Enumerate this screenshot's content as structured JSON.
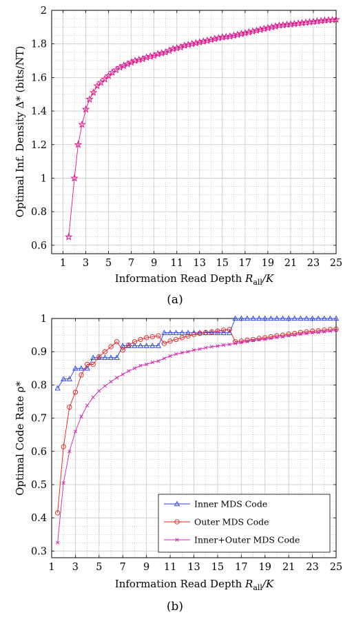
{
  "colors": {
    "density": "#e0118a",
    "inner": "#1f3ee6",
    "outer": "#e01b1b",
    "innerouter": "#d41cb0"
  },
  "chart_data": [
    {
      "type": "line",
      "caption": "(a)",
      "title": "",
      "xlabel_main": "Information Read Depth ",
      "xlabel_var": "R",
      "xlabel_sub": "all",
      "xlabel_tail": "/K",
      "ylabel": "Optimal Inf. Density Δ* (bits/NT)",
      "xlim": [
        0,
        25
      ],
      "ylim": [
        0.55,
        2
      ],
      "xticks": [
        1,
        3,
        5,
        7,
        9,
        11,
        13,
        15,
        17,
        19,
        21,
        23,
        25
      ],
      "xtick_labels": [
        "1",
        "3",
        "5",
        "7",
        "9",
        "11",
        "13",
        "15",
        "17",
        "19",
        "21",
        "23",
        "25"
      ],
      "yticks": [
        0.6,
        0.8,
        1,
        1.2,
        1.4,
        1.6,
        1.8,
        2
      ],
      "ytick_labels": [
        "0.6",
        "0.8",
        "1",
        "1.2",
        "1.4",
        "1.6",
        "1.8",
        "2"
      ],
      "grid": true,
      "series": [
        {
          "marker": "star",
          "color": "#e0118a",
          "x": [
            1.5,
            2,
            2.33,
            2.67,
            3,
            3.33,
            3.67,
            4,
            4.33,
            4.67,
            5,
            5.33,
            5.67,
            6,
            6.33,
            6.67,
            7,
            7.33,
            7.67,
            8,
            8.33,
            8.67,
            9,
            9.33,
            9.67,
            10,
            10.33,
            10.67,
            11,
            11.33,
            11.67,
            12,
            12.33,
            12.67,
            13,
            13.33,
            13.67,
            14,
            14.33,
            14.67,
            15,
            15.33,
            15.67,
            16,
            16.33,
            16.67,
            17,
            17.33,
            17.67,
            18,
            18.33,
            18.67,
            19,
            19.33,
            19.67,
            20,
            20.33,
            20.67,
            21,
            21.33,
            21.67,
            22,
            22.33,
            22.67,
            23,
            23.33,
            23.67,
            24,
            24.33,
            24.67,
            25
          ],
          "y": [
            0.65,
            1.0,
            1.2,
            1.32,
            1.41,
            1.47,
            1.51,
            1.55,
            1.57,
            1.59,
            1.61,
            1.63,
            1.645,
            1.66,
            1.67,
            1.68,
            1.69,
            1.7,
            1.705,
            1.71,
            1.72,
            1.725,
            1.73,
            1.74,
            1.745,
            1.75,
            1.76,
            1.77,
            1.775,
            1.78,
            1.79,
            1.795,
            1.8,
            1.805,
            1.81,
            1.815,
            1.82,
            1.825,
            1.83,
            1.835,
            1.84,
            1.842,
            1.845,
            1.85,
            1.855,
            1.86,
            1.865,
            1.87,
            1.875,
            1.88,
            1.885,
            1.89,
            1.895,
            1.9,
            1.905,
            1.91,
            1.912,
            1.915,
            1.917,
            1.92,
            1.922,
            1.925,
            1.927,
            1.93,
            1.932,
            1.935,
            1.937,
            1.94,
            1.942,
            1.943,
            1.945
          ]
        }
      ]
    },
    {
      "type": "line",
      "caption": "(b)",
      "title": "",
      "xlabel_main": "Information Read Depth ",
      "xlabel_var": "R",
      "xlabel_sub": "all",
      "xlabel_tail": "/K",
      "ylabel": "Optimal Code Rate ρ*",
      "xlim": [
        1,
        25
      ],
      "ylim": [
        0.28,
        1
      ],
      "xticks": [
        1,
        3,
        5,
        7,
        9,
        11,
        13,
        15,
        17,
        19,
        21,
        23,
        25
      ],
      "xtick_labels": [
        "1",
        "3",
        "5",
        "7",
        "9",
        "11",
        "13",
        "15",
        "17",
        "19",
        "21",
        "23",
        "25"
      ],
      "yticks": [
        0.3,
        0.4,
        0.5,
        0.6,
        0.7,
        0.8,
        0.9,
        1
      ],
      "ytick_labels": [
        "0.3",
        "0.4",
        "0.5",
        "0.6",
        "0.7",
        "0.8",
        "0.9",
        "1"
      ],
      "grid": true,
      "legend_position": "bottom-right",
      "series": [
        {
          "name": "Inner MDS Code",
          "marker": "triangle",
          "color": "#1f3ee6",
          "x": [
            1.5,
            2,
            2.5,
            3,
            3.5,
            4,
            4.5,
            5,
            5.5,
            6,
            6.5,
            7,
            7.5,
            8,
            8.5,
            9,
            9.5,
            10,
            10.5,
            11,
            11.5,
            12,
            12.5,
            13,
            13.5,
            14,
            14.5,
            15,
            15.5,
            16,
            16.5,
            17,
            17.5,
            18,
            18.5,
            19,
            19.5,
            20,
            20.5,
            21,
            21.5,
            22,
            22.5,
            23,
            23.5,
            24,
            24.5,
            25
          ],
          "y": [
            0.79,
            0.818,
            0.818,
            0.85,
            0.85,
            0.85,
            0.882,
            0.882,
            0.882,
            0.882,
            0.882,
            0.918,
            0.918,
            0.918,
            0.918,
            0.918,
            0.918,
            0.918,
            0.957,
            0.957,
            0.957,
            0.957,
            0.957,
            0.957,
            0.957,
            0.957,
            0.957,
            0.957,
            0.957,
            0.957,
            1.0,
            1.0,
            1.0,
            1.0,
            1.0,
            1.0,
            1.0,
            1.0,
            1.0,
            1.0,
            1.0,
            1.0,
            1.0,
            1.0,
            1.0,
            1.0,
            1.0,
            1.0
          ]
        },
        {
          "name": "Outer MDS Code",
          "marker": "circle",
          "color": "#e01b1b",
          "x": [
            1.5,
            2,
            2.5,
            3,
            3.5,
            4,
            4.5,
            5,
            5.5,
            6,
            6.5,
            7,
            7.5,
            8,
            8.5,
            9,
            9.5,
            10,
            10.5,
            11,
            11.5,
            12,
            12.5,
            13,
            13.5,
            14,
            14.5,
            15,
            15.5,
            16,
            16.5,
            17,
            17.5,
            18,
            18.5,
            19,
            19.5,
            20,
            20.5,
            21,
            21.5,
            22,
            22.5,
            23,
            23.5,
            24,
            24.5,
            25
          ],
          "y": [
            0.415,
            0.614,
            0.733,
            0.778,
            0.83,
            0.862,
            0.862,
            0.885,
            0.9,
            0.915,
            0.93,
            0.905,
            0.92,
            0.93,
            0.937,
            0.942,
            0.945,
            0.948,
            0.925,
            0.932,
            0.937,
            0.942,
            0.947,
            0.952,
            0.955,
            0.958,
            0.96,
            0.962,
            0.965,
            0.967,
            0.93,
            0.932,
            0.935,
            0.937,
            0.94,
            0.942,
            0.945,
            0.948,
            0.95,
            0.953,
            0.955,
            0.958,
            0.96,
            0.962,
            0.963,
            0.965,
            0.967,
            0.968
          ]
        },
        {
          "name": "Inner+Outer MDS Code",
          "marker": "cross",
          "color": "#d41cb0",
          "x": [
            1.5,
            2,
            2.5,
            3,
            3.5,
            4,
            4.5,
            5,
            5.5,
            6,
            6.5,
            7,
            7.5,
            8,
            8.5,
            9,
            9.5,
            10,
            10.5,
            11,
            11.5,
            12,
            12.5,
            13,
            13.5,
            14,
            14.5,
            15,
            15.5,
            16,
            16.5,
            17,
            17.5,
            18,
            18.5,
            19,
            19.5,
            20,
            20.5,
            21,
            21.5,
            22,
            22.5,
            23,
            23.5,
            24,
            24.5,
            25
          ],
          "y": [
            0.325,
            0.505,
            0.6,
            0.66,
            0.705,
            0.738,
            0.763,
            0.782,
            0.797,
            0.81,
            0.822,
            0.832,
            0.842,
            0.85,
            0.858,
            0.862,
            0.868,
            0.872,
            0.88,
            0.887,
            0.893,
            0.897,
            0.9,
            0.905,
            0.908,
            0.912,
            0.915,
            0.917,
            0.92,
            0.922,
            0.925,
            0.928,
            0.931,
            0.934,
            0.936,
            0.938,
            0.94,
            0.943,
            0.945,
            0.948,
            0.95,
            0.953,
            0.955,
            0.957,
            0.958,
            0.96,
            0.962,
            0.964
          ]
        }
      ]
    }
  ]
}
